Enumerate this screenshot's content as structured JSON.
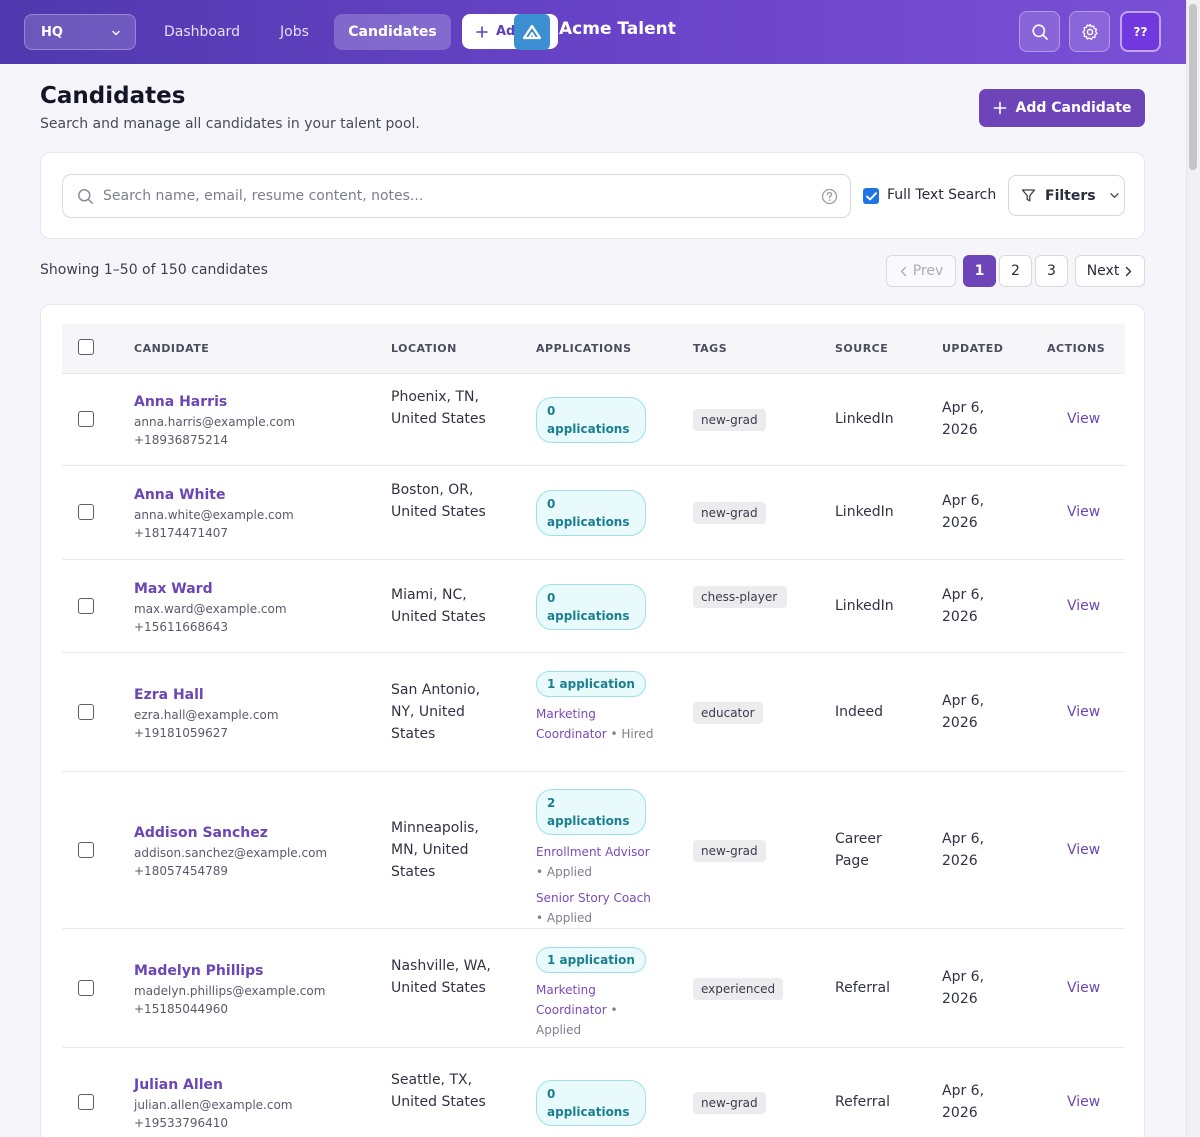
{
  "topbar": {
    "workspace": "HQ",
    "nav": [
      "Dashboard",
      "Jobs",
      "Candidates"
    ],
    "active_nav": "Candidates",
    "add_label": "Add",
    "brand": "Acme Talent",
    "avatar_initials": "??"
  },
  "page": {
    "title": "Candidates",
    "subtitle": "Search and manage all candidates in your talent pool.",
    "add_button": "Add Candidate"
  },
  "search": {
    "placeholder": "Search name, email, resume content, notes...",
    "full_text_label": "Full Text Search",
    "full_text_checked": true,
    "filters_label": "Filters"
  },
  "pagination": {
    "showing": "Showing 1–50 of 150 candidates",
    "prev": "Prev",
    "pages": [
      "1",
      "2",
      "3"
    ],
    "current": "1",
    "next": "Next"
  },
  "table": {
    "headers": {
      "candidate": "CANDIDATE",
      "location": "LOCATION",
      "applications": "APPLICATIONS",
      "tags": "TAGS",
      "source": "SOURCE",
      "updated": "UPDATED",
      "actions": "ACTIONS"
    },
    "view_label": "View",
    "rows": [
      {
        "name": "Anna Harris",
        "email": "anna.harris@example.com",
        "phone": "+18936875214",
        "location": "Phoenix, TN, United States",
        "apps_count": "0 applications",
        "apps": [],
        "tag": "new-grad",
        "source": "LinkedIn",
        "updated": "Apr 6, 2026"
      },
      {
        "name": "Anna White",
        "email": "anna.white@example.com",
        "phone": "+18174471407",
        "location": "Boston, OR, United States",
        "apps_count": "0 applications",
        "apps": [],
        "tag": "new-grad",
        "source": "LinkedIn",
        "updated": "Apr 6, 2026"
      },
      {
        "name": "Max Ward",
        "email": "max.ward@example.com",
        "phone": "+15611668643",
        "location": "Miami, NC, United States",
        "apps_count": "0 applications",
        "apps": [],
        "tag": "chess-player",
        "source": "LinkedIn",
        "updated": "Apr 6, 2026"
      },
      {
        "name": "Ezra Hall",
        "email": "ezra.hall@example.com",
        "phone": "+19181059627",
        "location": "San Antonio, NY, United States",
        "apps_count": "1 application",
        "apps": [
          {
            "job": "Marketing Coordinator",
            "status": "Hired"
          }
        ],
        "tag": "educator",
        "source": "Indeed",
        "updated": "Apr 6, 2026"
      },
      {
        "name": "Addison Sanchez",
        "email": "addison.sanchez@example.com",
        "phone": "+18057454789",
        "location": "Minneapolis, MN, United States",
        "apps_count": "2 applications",
        "apps": [
          {
            "job": "Enrollment Advisor",
            "status": "Applied"
          },
          {
            "job": "Senior Story Coach",
            "status": "Applied"
          }
        ],
        "tag": "new-grad",
        "source": "Career Page",
        "updated": "Apr 6, 2026"
      },
      {
        "name": "Madelyn Phillips",
        "email": "madelyn.phillips@example.com",
        "phone": "+15185044960",
        "location": "Nashville, WA, United States",
        "apps_count": "1 application",
        "apps": [
          {
            "job": "Marketing Coordinator",
            "status": "Applied"
          }
        ],
        "tag": "experienced",
        "source": "Referral",
        "updated": "Apr 6, 2026"
      },
      {
        "name": "Julian Allen",
        "email": "julian.allen@example.com",
        "phone": "+19533796410",
        "location": "Seattle, TX, United States",
        "apps_count": "0 applications",
        "apps": [],
        "tag": "new-grad",
        "source": "Referral",
        "updated": "Apr 6, 2026"
      }
    ]
  },
  "colors": {
    "brand_gradient_start": "#4f39ae",
    "brand_gradient_end": "#7a4fd6",
    "primary": "#6d45b8",
    "link": "#6b46b5",
    "app_pill_bg": "#e8fafc",
    "app_pill_text": "#1b7f91",
    "checkbox_blue": "#1f75e6"
  },
  "icons": {
    "workspace_chevron": "chevron-down-icon",
    "add": "plus-icon",
    "brand": "logo-icon",
    "search": "search-icon",
    "settings": "gear-icon",
    "help": "help-circle-icon",
    "filters": "filter-icon",
    "prev": "chevron-left-icon",
    "next": "chevron-right-icon"
  }
}
